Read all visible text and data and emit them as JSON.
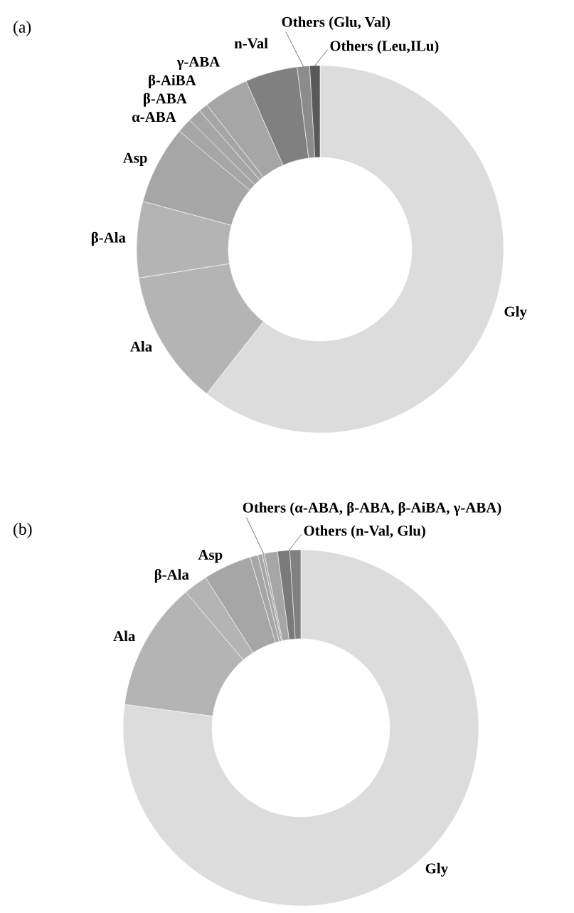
{
  "chart_data": [
    {
      "type": "donut",
      "title": "(a)",
      "categories": [
        "Gly",
        "Ala",
        "β-Ala",
        "Asp",
        "α-ABA",
        "β-ABA",
        "β-AiBA",
        "γ-ABA",
        "n-Val",
        "Others (Glu, Val)",
        "Others (Leu,ILu)"
      ],
      "values": [
        60.6,
        11.9,
        6.7,
        6.9,
        1.3,
        1.2,
        0.8,
        4.0,
        4.6,
        1.1,
        0.9
      ],
      "colors": [
        "#dcdcdc",
        "#b4b4b4",
        "#b4b4b4",
        "#a6a6a6",
        "#a6a6a6",
        "#a6a6a6",
        "#a6a6a6",
        "#a6a6a6",
        "#808080",
        "#8c8c8c",
        "#595959"
      ]
    },
    {
      "type": "donut",
      "title": "(b)",
      "categories": [
        "Gly",
        "Ala",
        "β-Ala",
        "Asp",
        "Others (α-ABA, β-ABA, β-AiBA, γ-ABA)",
        null,
        null,
        null,
        "Others (n-Val, Glu)",
        null
      ],
      "values": [
        77.1,
        11.7,
        2.2,
        4.4,
        0.7,
        0.4,
        0.2,
        1.2,
        1.1,
        1.0
      ],
      "colors": [
        "#dcdcdc",
        "#b4b4b4",
        "#b4b4b4",
        "#a6a6a6",
        "#a6a6a6",
        "#a6a6a6",
        "#a6a6a6",
        "#a6a6a6",
        "#7a7a7a",
        "#808080"
      ]
    }
  ]
}
